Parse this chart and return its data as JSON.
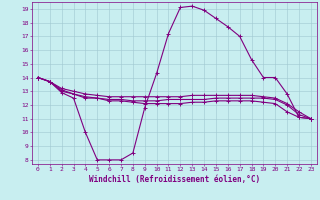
{
  "title": "",
  "xlabel": "Windchill (Refroidissement éolien,°C)",
  "ylabel": "",
  "bg_color": "#c8eef0",
  "line_color": "#800080",
  "grid_color": "#a0c8d0",
  "xlim": [
    -0.5,
    23.5
  ],
  "ylim": [
    7.7,
    19.5
  ],
  "xticks": [
    0,
    1,
    2,
    3,
    4,
    5,
    6,
    7,
    8,
    9,
    10,
    11,
    12,
    13,
    14,
    15,
    16,
    17,
    18,
    19,
    20,
    21,
    22,
    23
  ],
  "yticks": [
    8,
    9,
    10,
    11,
    12,
    13,
    14,
    15,
    16,
    17,
    18,
    19
  ],
  "line1_x": [
    0,
    1,
    2,
    3,
    4,
    5,
    6,
    7,
    8,
    9,
    10,
    11,
    12,
    13,
    14,
    15,
    16,
    17,
    18,
    19,
    20,
    21,
    22,
    23
  ],
  "line1_y": [
    14.0,
    13.7,
    12.9,
    12.5,
    10.0,
    8.0,
    8.0,
    8.0,
    8.5,
    11.8,
    14.3,
    17.2,
    19.1,
    19.2,
    18.9,
    18.3,
    17.7,
    17.0,
    15.3,
    14.0,
    14.0,
    12.8,
    11.1,
    11.0
  ],
  "line2_x": [
    0,
    1,
    2,
    3,
    4,
    5,
    6,
    7,
    8,
    9,
    10,
    11,
    12,
    13,
    14,
    15,
    16,
    17,
    18,
    19,
    20,
    21,
    22,
    23
  ],
  "line2_y": [
    14.0,
    13.7,
    13.0,
    12.8,
    12.5,
    12.5,
    12.3,
    12.3,
    12.2,
    12.1,
    12.1,
    12.1,
    12.1,
    12.2,
    12.2,
    12.3,
    12.3,
    12.3,
    12.3,
    12.2,
    12.1,
    11.5,
    11.1,
    11.0
  ],
  "line3_x": [
    0,
    1,
    2,
    3,
    4,
    5,
    6,
    7,
    8,
    9,
    10,
    11,
    12,
    13,
    14,
    15,
    16,
    17,
    18,
    19,
    20,
    21,
    22,
    23
  ],
  "line3_y": [
    14.0,
    13.7,
    13.1,
    12.8,
    12.6,
    12.5,
    12.4,
    12.4,
    12.3,
    12.3,
    12.3,
    12.4,
    12.4,
    12.4,
    12.4,
    12.5,
    12.5,
    12.5,
    12.5,
    12.5,
    12.4,
    12.0,
    11.3,
    11.0
  ],
  "line4_x": [
    0,
    1,
    2,
    3,
    4,
    5,
    6,
    7,
    8,
    9,
    10,
    11,
    12,
    13,
    14,
    15,
    16,
    17,
    18,
    19,
    20,
    21,
    22,
    23
  ],
  "line4_y": [
    14.0,
    13.7,
    13.2,
    13.0,
    12.8,
    12.7,
    12.6,
    12.6,
    12.6,
    12.6,
    12.6,
    12.6,
    12.6,
    12.7,
    12.7,
    12.7,
    12.7,
    12.7,
    12.7,
    12.6,
    12.5,
    12.1,
    11.5,
    11.0
  ],
  "marker": "+",
  "markersize": 3,
  "linewidth": 0.8,
  "tick_fontsize": 4.5,
  "xlabel_fontsize": 5.5,
  "axis_label_color": "#800080"
}
